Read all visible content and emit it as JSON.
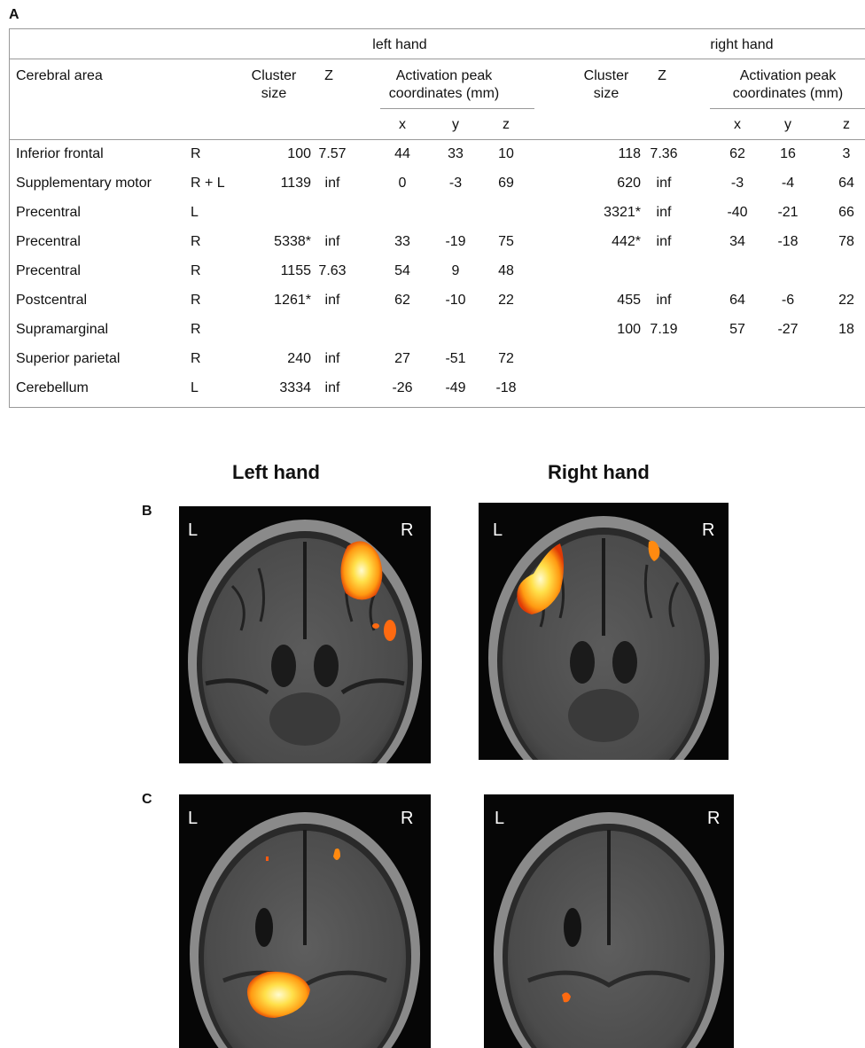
{
  "panel_labels": {
    "a": "A",
    "b": "B",
    "c": "C"
  },
  "table": {
    "group_left": "left hand",
    "group_right": "right hand",
    "headers": {
      "area": "Cerebral area",
      "cluster_line1": "Cluster",
      "cluster_line2": "size",
      "z": "Z",
      "peak_line1": "Activation peak",
      "peak_line2": "coordinates (mm)",
      "x": "x",
      "y": "y",
      "zc": "z"
    },
    "rows": [
      {
        "area": "Inferior frontal",
        "side": "R",
        "l_cluster": "100",
        "l_z": "7.57",
        "l_x": "44",
        "l_y": "33",
        "l_zc": "10",
        "r_cluster": "118",
        "r_z": "7.36",
        "r_x": "62",
        "r_y": "16",
        "r_zc": "3"
      },
      {
        "area": "Supplementary motor",
        "side": "R + L",
        "l_cluster": "1139",
        "l_z": "inf",
        "l_x": "0",
        "l_y": "-3",
        "l_zc": "69",
        "r_cluster": "620",
        "r_z": "inf",
        "r_x": "-3",
        "r_y": "-4",
        "r_zc": "64"
      },
      {
        "area": "Precentral",
        "side": "L",
        "l_cluster": "",
        "l_z": "",
        "l_x": "",
        "l_y": "",
        "l_zc": "",
        "r_cluster": "3321*",
        "r_z": "inf",
        "r_x": "-40",
        "r_y": "-21",
        "r_zc": "66"
      },
      {
        "area": "Precentral",
        "side": "R",
        "l_cluster": "5338*",
        "l_z": "inf",
        "l_x": "33",
        "l_y": "-19",
        "l_zc": "75",
        "r_cluster": "442*",
        "r_z": "inf",
        "r_x": "34",
        "r_y": "-18",
        "r_zc": "78"
      },
      {
        "area": "Precentral",
        "side": "R",
        "l_cluster": "1155",
        "l_z": "7.63",
        "l_x": "54",
        "l_y": "9",
        "l_zc": "48",
        "r_cluster": "",
        "r_z": "",
        "r_x": "",
        "r_y": "",
        "r_zc": ""
      },
      {
        "area": "Postcentral",
        "side": "R",
        "l_cluster": "1261*",
        "l_z": "inf",
        "l_x": "62",
        "l_y": "-10",
        "l_zc": "22",
        "r_cluster": "455",
        "r_z": "inf",
        "r_x": "64",
        "r_y": "-6",
        "r_zc": "22"
      },
      {
        "area": "Supramarginal",
        "side": "R",
        "l_cluster": "",
        "l_z": "",
        "l_x": "",
        "l_y": "",
        "l_zc": "",
        "r_cluster": "100",
        "r_z": "7.19",
        "r_x": "57",
        "r_y": "-27",
        "r_zc": "18"
      },
      {
        "area": "Superior parietal",
        "side": "R",
        "l_cluster": "240",
        "l_z": "inf",
        "l_x": "27",
        "l_y": "-51",
        "l_zc": "72",
        "r_cluster": "",
        "r_z": "",
        "r_x": "",
        "r_y": "",
        "r_zc": ""
      },
      {
        "area": "Cerebellum",
        "side": "L",
        "l_cluster": "3334",
        "l_z": "inf",
        "l_x": "-26",
        "l_y": "-49",
        "l_zc": "-18",
        "r_cluster": "",
        "r_z": "",
        "r_x": "",
        "r_y": "",
        "r_zc": ""
      }
    ]
  },
  "figure": {
    "left_title": "Left hand",
    "right_title": "Right hand",
    "side_left": "L",
    "side_right": "R"
  },
  "colors": {
    "activation_hot": "#ffe04a",
    "activation_warm": "#ff8a10",
    "activation_edge": "#e03a05",
    "background": "#060606"
  }
}
